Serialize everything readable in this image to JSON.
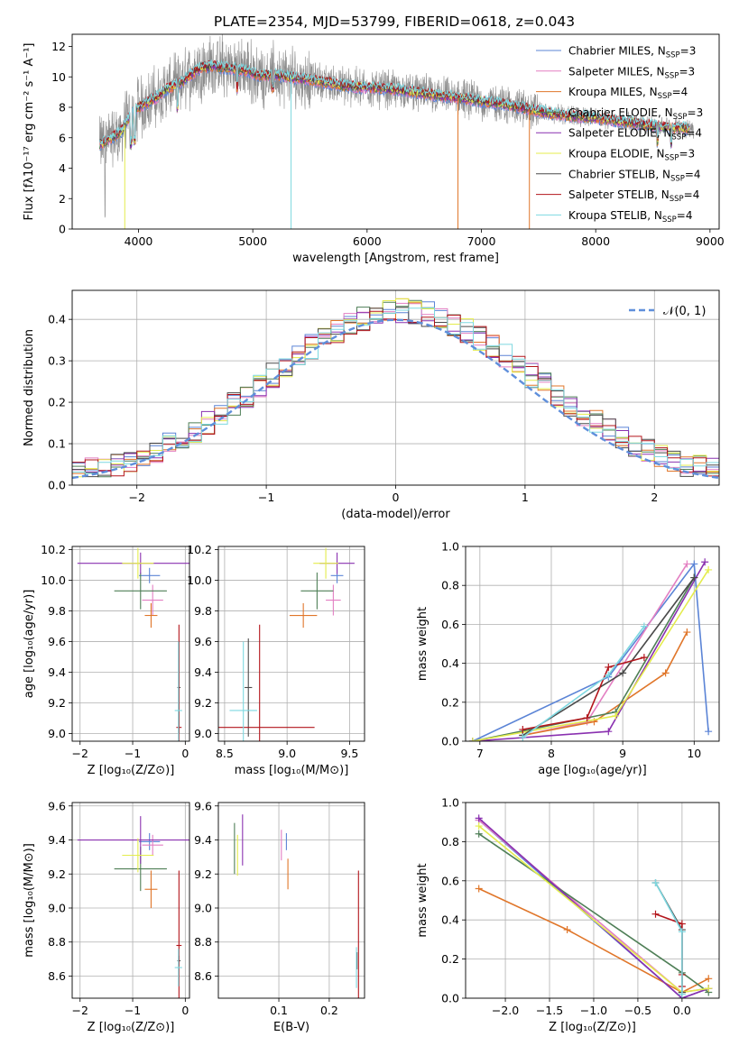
{
  "figure": {
    "title": "PLATE=2354, MJD=53799, FIBERID=0618, z=0.043"
  },
  "colors": {
    "Chabrier MILES": "#5b84d6",
    "Salpeter MILES": "#e37fc2",
    "Kroupa MILES": "#e0762a",
    "Chabrier ELODIE": "#4f7f57",
    "Salpeter ELODIE": "#8a31b0",
    "Kroupa ELODIE": "#e4ec4c",
    "Chabrier STELIB": "#4a4a4a",
    "Salpeter STELIB": "#b3151b",
    "Kroupa STELIB": "#7dd8e0",
    "data": "#8c8c8c",
    "normal": "#5f8fdb"
  },
  "chart_data": [
    {
      "id": "spectrum",
      "type": "line",
      "xlabel": "wavelength [Angstrom, rest frame]",
      "ylabel": "Flux [fλ10⁻¹⁷ erg cm⁻² s⁻¹ A⁻¹]",
      "xlim": [
        3420,
        9080
      ],
      "ylim": [
        0,
        12.8
      ],
      "xticks": [
        4000,
        5000,
        6000,
        7000,
        8000,
        9000
      ],
      "yticks": [
        0,
        2,
        4,
        6,
        8,
        10,
        12
      ],
      "grid": false,
      "legend_position": "top-right",
      "series": [
        {
          "name": "Chabrier MILES",
          "nssp": "3"
        },
        {
          "name": "Salpeter MILES",
          "nssp": "3"
        },
        {
          "name": "Kroupa MILES",
          "nssp": "4"
        },
        {
          "name": "Chabrier ELODIE",
          "nssp": "3"
        },
        {
          "name": "Salpeter ELODIE",
          "nssp": "4"
        },
        {
          "name": "Kroupa ELODIE",
          "nssp": "3"
        },
        {
          "name": "Chabrier STELIB",
          "nssp": "4"
        },
        {
          "name": "Salpeter STELIB",
          "nssp": "4"
        },
        {
          "name": "Kroupa STELIB",
          "nssp": "4"
        }
      ],
      "model_continuum": {
        "x": [
          3650,
          3750,
          3850,
          3950,
          4050,
          4150,
          4250,
          4350,
          4450,
          4550,
          4650,
          4750,
          4850,
          4950,
          5050,
          5200,
          5400,
          5600,
          5800,
          6000,
          6200,
          6400,
          6600,
          6800,
          7000,
          7200,
          7400,
          7600,
          7800,
          8000,
          8200,
          8400,
          8600,
          8800
        ],
        "y": [
          5.5,
          5.9,
          6.4,
          7.8,
          8.2,
          8.6,
          9.2,
          9.5,
          10.1,
          10.6,
          10.7,
          10.6,
          10.5,
          10.4,
          10.1,
          10.1,
          9.9,
          9.7,
          9.4,
          9.3,
          9.2,
          9.0,
          8.8,
          8.6,
          8.4,
          8.2,
          7.9,
          7.6,
          7.4,
          7.3,
          7.1,
          6.9,
          6.7,
          6.6
        ]
      }
    },
    {
      "id": "residuals",
      "type": "line",
      "xlabel": "(data-model)/error",
      "ylabel": "Normed distribution",
      "xlim": [
        -2.5,
        2.5
      ],
      "ylim": [
        0,
        0.47
      ],
      "xticks": [
        -2,
        -1,
        0,
        1,
        2
      ],
      "yticks": [
        0.0,
        0.1,
        0.2,
        0.3,
        0.4
      ],
      "grid": true,
      "legend": "𝒩(0, 1)",
      "legend_position": "top-right"
    },
    {
      "id": "age-vs-Z",
      "type": "scatter",
      "xlabel": "Z [log₁₀(Z/Z⊙)]",
      "ylabel": "age  [log₁₀(age/yr)]",
      "xlim": [
        -2.15,
        0.08
      ],
      "ylim": [
        8.95,
        10.22
      ],
      "xticks": [
        -2,
        -1,
        0
      ],
      "yticks": [
        9.0,
        9.2,
        9.4,
        9.6,
        9.8,
        10.0,
        10.2
      ],
      "grid": true,
      "points": [
        {
          "series": "Chabrier MILES",
          "x": -0.68,
          "xerr": 0.2,
          "y": 10.03,
          "yerr": 0.05
        },
        {
          "series": "Salpeter MILES",
          "x": -0.62,
          "xerr": 0.2,
          "y": 9.87,
          "yerr": 0.1
        },
        {
          "series": "Kroupa MILES",
          "x": -0.65,
          "xerr": 0.12,
          "y": 9.77,
          "yerr": 0.08
        },
        {
          "series": "Chabrier ELODIE",
          "x": -0.85,
          "xerr": 0.5,
          "y": 9.93,
          "yerr": 0.12
        },
        {
          "series": "Salpeter ELODIE",
          "x": -0.85,
          "xerr": 1.2,
          "y": 10.11,
          "yerr": 0.07
        },
        {
          "series": "Kroupa ELODIE",
          "x": -0.9,
          "xerr": 0.3,
          "y": 10.11,
          "yerr": 0.1
        },
        {
          "series": "Chabrier STELIB",
          "x": -0.12,
          "xerr": 0.03,
          "y": 9.3,
          "yerr": 0.3
        },
        {
          "series": "Salpeter STELIB",
          "x": -0.12,
          "xerr": 0.05,
          "y": 9.04,
          "yerr": 0.67
        },
        {
          "series": "Kroupa STELIB",
          "x": -0.13,
          "xerr": 0.07,
          "y": 9.15,
          "yerr": 0.45
        }
      ]
    },
    {
      "id": "age-vs-mass",
      "type": "scatter",
      "xlabel": "mass [log₁₀(M/M⊙)]",
      "ylabel": "",
      "xlim": [
        8.45,
        9.62
      ],
      "ylim": [
        8.95,
        10.22
      ],
      "xticks": [
        8.5,
        9.0,
        9.5
      ],
      "yticks": [
        9.0,
        9.2,
        9.4,
        9.6,
        9.8,
        10.0,
        10.2
      ],
      "grid": true,
      "points": [
        {
          "series": "Chabrier MILES",
          "x": 9.4,
          "xerr": 0.05,
          "y": 10.03,
          "yerr": 0.05
        },
        {
          "series": "Salpeter MILES",
          "x": 9.37,
          "xerr": 0.06,
          "y": 9.87,
          "yerr": 0.1
        },
        {
          "series": "Kroupa MILES",
          "x": 9.13,
          "xerr": 0.11,
          "y": 9.77,
          "yerr": 0.08
        },
        {
          "series": "Chabrier ELODIE",
          "x": 9.24,
          "xerr": 0.13,
          "y": 9.93,
          "yerr": 0.12
        },
        {
          "series": "Salpeter ELODIE",
          "x": 9.4,
          "xerr": 0.14,
          "y": 10.11,
          "yerr": 0.07
        },
        {
          "series": "Kroupa ELODIE",
          "x": 9.31,
          "xerr": 0.1,
          "y": 10.11,
          "yerr": 0.1
        },
        {
          "series": "Chabrier STELIB",
          "x": 8.69,
          "xerr": 0.03,
          "y": 9.3,
          "yerr": 0.32
        },
        {
          "series": "Salpeter STELIB",
          "x": 8.78,
          "xerr": 0.44,
          "y": 9.04,
          "yerr": 0.67
        },
        {
          "series": "Kroupa STELIB",
          "x": 8.65,
          "xerr": 0.11,
          "y": 9.15,
          "yerr": 0.45
        }
      ]
    },
    {
      "id": "mass-weight-vs-age",
      "type": "line",
      "xlabel": "age  [log₁₀(age/yr)]",
      "ylabel": "mass weight",
      "xlim": [
        6.8,
        10.35
      ],
      "ylim": [
        0,
        1
      ],
      "xticks": [
        7,
        8,
        9,
        10
      ],
      "yticks": [
        0.0,
        0.2,
        0.4,
        0.6,
        0.8,
        1.0
      ],
      "grid": true,
      "series": [
        {
          "name": "Chabrier MILES",
          "x": [
            6.9,
            8.8,
            10.0,
            10.2
          ],
          "y": [
            0.0,
            0.33,
            0.91,
            0.05
          ]
        },
        {
          "name": "Salpeter MILES",
          "x": [
            7.6,
            8.5,
            9.9
          ],
          "y": [
            0.03,
            0.1,
            0.91
          ]
        },
        {
          "name": "Kroupa MILES",
          "x": [
            7.6,
            8.6,
            9.6,
            9.9
          ],
          "y": [
            0.03,
            0.1,
            0.35,
            0.56
          ]
        },
        {
          "name": "Chabrier ELODIE",
          "x": [
            6.9,
            8.9,
            10.0
          ],
          "y": [
            0.0,
            0.15,
            0.84
          ]
        },
        {
          "name": "Salpeter ELODIE",
          "x": [
            6.9,
            8.8,
            10.15
          ],
          "y": [
            0.0,
            0.05,
            0.92
          ]
        },
        {
          "name": "Kroupa ELODIE",
          "x": [
            6.9,
            8.9,
            10.2
          ],
          "y": [
            0.0,
            0.13,
            0.88
          ]
        },
        {
          "name": "Chabrier STELIB",
          "x": [
            7.6,
            9.0,
            10.0
          ],
          "y": [
            0.03,
            0.35,
            0.84
          ]
        },
        {
          "name": "Salpeter STELIB",
          "x": [
            7.6,
            8.5,
            8.8,
            9.3
          ],
          "y": [
            0.06,
            0.12,
            0.38,
            0.43
          ]
        },
        {
          "name": "Kroupa STELIB",
          "x": [
            7.6,
            8.8,
            9.3
          ],
          "y": [
            0.02,
            0.34,
            0.59
          ]
        }
      ]
    },
    {
      "id": "mass-vs-Z",
      "type": "scatter",
      "xlabel": "Z [log₁₀(Z/Z⊙)]",
      "ylabel": "mass [log₁₀(M/M⊙)]",
      "xlim": [
        -2.15,
        0.08
      ],
      "ylim": [
        8.47,
        9.62
      ],
      "xticks": [
        -2,
        -1,
        0
      ],
      "yticks": [
        8.6,
        8.8,
        9.0,
        9.2,
        9.4,
        9.6
      ],
      "grid": true,
      "points": [
        {
          "series": "Chabrier MILES",
          "x": -0.68,
          "xerr": 0.2,
          "y": 9.39,
          "yerr": 0.05
        },
        {
          "series": "Salpeter MILES",
          "x": -0.62,
          "xerr": 0.2,
          "y": 9.37,
          "yerr": 0.06
        },
        {
          "series": "Kroupa MILES",
          "x": -0.65,
          "xerr": 0.12,
          "y": 9.11,
          "yerr": 0.11
        },
        {
          "series": "Chabrier ELODIE",
          "x": -0.85,
          "xerr": 0.5,
          "y": 9.23,
          "yerr": 0.13
        },
        {
          "series": "Salpeter ELODIE",
          "x": -0.85,
          "xerr": 1.2,
          "y": 9.4,
          "yerr": 0.14
        },
        {
          "series": "Kroupa ELODIE",
          "x": -0.9,
          "xerr": 0.3,
          "y": 9.31,
          "yerr": 0.1
        },
        {
          "series": "Chabrier STELIB",
          "x": -0.12,
          "xerr": 0.03,
          "y": 8.69,
          "yerr": 0.03
        },
        {
          "series": "Salpeter STELIB",
          "x": -0.12,
          "xerr": 0.05,
          "y": 8.78,
          "yerr": 0.44
        },
        {
          "series": "Kroupa STELIB",
          "x": -0.13,
          "xerr": 0.07,
          "y": 8.65,
          "yerr": 0.11
        }
      ]
    },
    {
      "id": "mass-vs-EBV",
      "type": "scatter",
      "xlabel": "E(B-V)",
      "ylabel": "",
      "xlim": [
        -0.02,
        0.27
      ],
      "ylim": [
        8.47,
        9.62
      ],
      "xticks": [
        0.1,
        0.2
      ],
      "yticks": [
        8.6,
        8.8,
        9.0,
        9.2,
        9.4,
        9.6
      ],
      "grid": true,
      "points": [
        {
          "series": "Chabrier MILES",
          "x": 0.115,
          "xerr": 0.0,
          "y": 9.39,
          "yerr": 0.05
        },
        {
          "series": "Salpeter MILES",
          "x": 0.105,
          "xerr": 0.0,
          "y": 9.37,
          "yerr": 0.09
        },
        {
          "series": "Kroupa MILES",
          "x": 0.118,
          "xerr": 0.0,
          "y": 9.2,
          "yerr": 0.09
        },
        {
          "series": "Chabrier ELODIE",
          "x": 0.012,
          "xerr": 0.0,
          "y": 9.35,
          "yerr": 0.15
        },
        {
          "series": "Salpeter ELODIE",
          "x": 0.028,
          "xerr": 0.0,
          "y": 9.4,
          "yerr": 0.15
        },
        {
          "series": "Kroupa ELODIE",
          "x": 0.018,
          "xerr": 0.0,
          "y": 9.31,
          "yerr": 0.12
        },
        {
          "series": "Chabrier STELIB",
          "x": 0.255,
          "xerr": 0.0,
          "y": 8.69,
          "yerr": 0.05
        },
        {
          "series": "Salpeter STELIB",
          "x": 0.258,
          "xerr": 0.0,
          "y": 8.78,
          "yerr": 0.44
        },
        {
          "series": "Kroupa STELIB",
          "x": 0.254,
          "xerr": 0.0,
          "y": 8.65,
          "yerr": 0.12
        }
      ]
    },
    {
      "id": "mass-weight-vs-Z",
      "type": "line",
      "xlabel": "Z [log₁₀(Z/Z⊙)]",
      "ylabel": "mass weight",
      "xlim": [
        -2.45,
        0.42
      ],
      "ylim": [
        0,
        1
      ],
      "xticks": [
        -2.0,
        -1.5,
        -1.0,
        -0.5,
        0.0
      ],
      "yticks": [
        0.0,
        0.2,
        0.4,
        0.6,
        0.8,
        1.0
      ],
      "grid": true,
      "series": [
        {
          "name": "Chabrier MILES",
          "x": [
            -2.3,
            0.0,
            0.3
          ],
          "y": [
            0.91,
            0.0,
            0.05
          ]
        },
        {
          "name": "Salpeter MILES",
          "x": [
            -2.3,
            0.0,
            0.3
          ],
          "y": [
            0.91,
            0.03,
            0.05
          ]
        },
        {
          "name": "Kroupa MILES",
          "x": [
            -2.3,
            -1.3,
            0.0,
            0.3
          ],
          "y": [
            0.56,
            0.35,
            0.03,
            0.1
          ]
        },
        {
          "name": "Chabrier ELODIE",
          "x": [
            -2.3,
            0.0,
            0.3
          ],
          "y": [
            0.84,
            0.13,
            0.03
          ]
        },
        {
          "name": "Salpeter ELODIE",
          "x": [
            -2.3,
            0.0,
            0.3
          ],
          "y": [
            0.92,
            0.0,
            0.05
          ]
        },
        {
          "name": "Kroupa ELODIE",
          "x": [
            -2.3,
            0.0,
            0.3
          ],
          "y": [
            0.88,
            0.03,
            0.05
          ]
        },
        {
          "name": "Chabrier STELIB",
          "x": [
            -0.3,
            0.0,
            0.0
          ],
          "y": [
            0.59,
            0.35,
            0.03
          ]
        },
        {
          "name": "Salpeter STELIB",
          "x": [
            -0.3,
            0.0,
            0.0,
            0.0
          ],
          "y": [
            0.43,
            0.38,
            0.06,
            0.12
          ]
        },
        {
          "name": "Kroupa STELIB",
          "x": [
            -0.3,
            0.0,
            0.0
          ],
          "y": [
            0.59,
            0.34,
            0.02
          ]
        }
      ]
    }
  ]
}
